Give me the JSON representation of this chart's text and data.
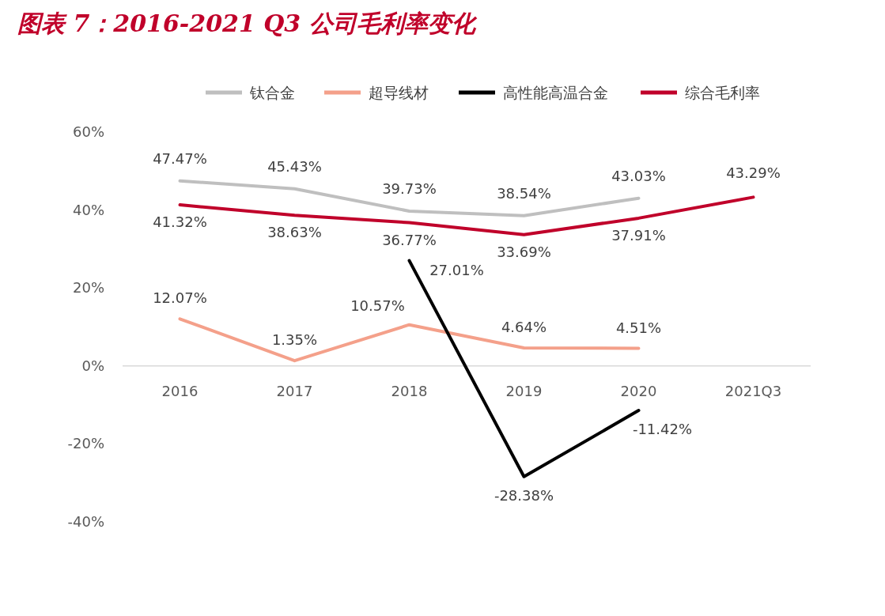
{
  "chart_data": {
    "type": "line",
    "title": "图表 7：2016-2021 Q3 公司毛利率变化",
    "categories": [
      "2016",
      "2017",
      "2018",
      "2019",
      "2020",
      "2021Q3"
    ],
    "ylim": [
      -40,
      60
    ],
    "yticks": [
      {
        "value": -40,
        "label": "-40%"
      },
      {
        "value": -20,
        "label": "-20%"
      },
      {
        "value": 0,
        "label": "0%"
      },
      {
        "value": 20,
        "label": "20%"
      },
      {
        "value": 40,
        "label": "40%"
      },
      {
        "value": 60,
        "label": "60%"
      }
    ],
    "legend": "top",
    "series": [
      {
        "name": "钛合金",
        "color": "#bfbfbf",
        "values": [
          47.47,
          45.43,
          39.73,
          38.54,
          43.03,
          null
        ],
        "value_labels": [
          "47.47%",
          "45.43%",
          "39.73%",
          "38.54%",
          "43.03%",
          null
        ]
      },
      {
        "name": "超导线材",
        "color": "#f4a08a",
        "values": [
          12.07,
          1.35,
          10.57,
          4.64,
          4.51,
          null
        ],
        "value_labels": [
          "12.07%",
          "1.35%",
          "10.57%",
          "4.64%",
          "4.51%",
          null
        ]
      },
      {
        "name": "高性能高温合金",
        "color": "#000000",
        "values": [
          null,
          null,
          27.01,
          -28.38,
          -11.42,
          null
        ],
        "value_labels": [
          null,
          null,
          "27.01%",
          "-28.38%",
          "-11.42%",
          null
        ]
      },
      {
        "name": "综合毛利率",
        "color": "#c0002a",
        "values": [
          41.32,
          38.63,
          36.77,
          33.69,
          37.91,
          43.29
        ],
        "value_labels": [
          "41.32%",
          "38.63%",
          "36.77%",
          "33.69%",
          "37.91%",
          "43.29%"
        ]
      }
    ]
  }
}
